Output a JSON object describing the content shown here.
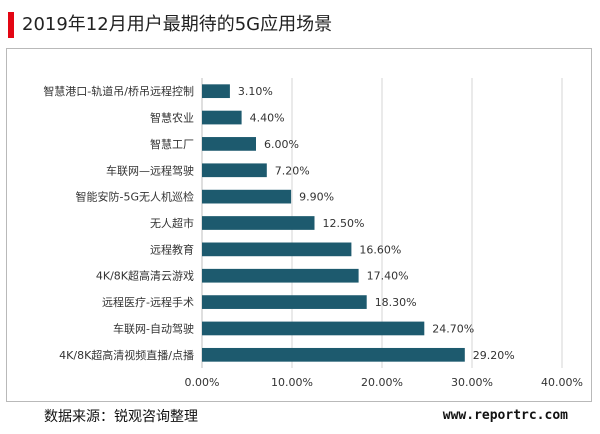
{
  "header": {
    "title": "2019年12月用户最期待的5G应用场景",
    "accent_color": "#e30613"
  },
  "chart_data": {
    "type": "bar",
    "orientation": "horizontal",
    "title": "2019年12月用户最期待的5G应用场景",
    "categories": [
      "智慧港口-轨道吊/桥吊远程控制",
      "智慧农业",
      "智慧工厂",
      "车联网—远程驾驶",
      "智能安防-5G无人机巡检",
      "无人超市",
      "远程教育",
      "4K/8K超高清云游戏",
      "远程医疗-远程手术",
      "车联网-自动驾驶",
      "4K/8K超高清视频直播/点播"
    ],
    "values": [
      3.1,
      4.4,
      6.0,
      7.2,
      9.9,
      12.5,
      16.6,
      17.4,
      18.3,
      24.7,
      29.2
    ],
    "value_labels": [
      "3.10%",
      "4.40%",
      "6.00%",
      "7.20%",
      "9.90%",
      "12.50%",
      "16.60%",
      "17.40%",
      "18.30%",
      "24.70%",
      "29.20%"
    ],
    "xlim": [
      0,
      40
    ],
    "x_ticks": [
      "0.00%",
      "10.00%",
      "20.00%",
      "30.00%",
      "40.00%"
    ],
    "x_tick_values": [
      0,
      10,
      20,
      30,
      40
    ],
    "grid": true,
    "bar_color": "#1d5a6e"
  },
  "footer": {
    "source": "数据来源：锐观咨询整理",
    "website": "www.reportrc.com"
  }
}
